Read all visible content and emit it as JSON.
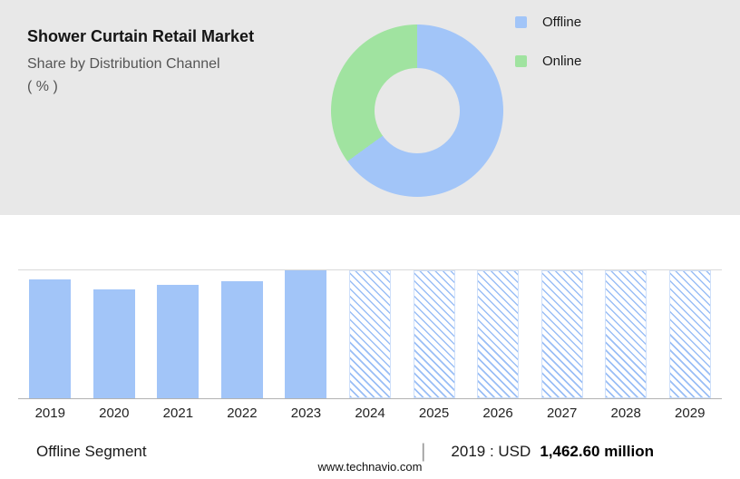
{
  "header": {
    "title": "Shower Curtain Retail Market",
    "subtitle": "Share by Distribution Channel",
    "unit": "( % )"
  },
  "legend": [
    {
      "label": "Offline",
      "color": "#a2c5f8"
    },
    {
      "label": "Online",
      "color": "#a0e3a0"
    }
  ],
  "chart_data": [
    {
      "type": "pie",
      "donut": true,
      "title": "Share by Distribution Channel ( % )",
      "labels": [
        "Offline",
        "Online"
      ],
      "values": [
        65,
        35
      ],
      "colors": [
        "#a2c5f8",
        "#a0e3a0"
      ],
      "legend_position": "right"
    },
    {
      "type": "bar",
      "title": "",
      "categories": [
        "2019",
        "2020",
        "2021",
        "2022",
        "2023",
        "2024",
        "2025",
        "2026",
        "2027",
        "2028",
        "2029"
      ],
      "values": [
        1462.6,
        1340,
        1390,
        1440,
        1570,
        null,
        null,
        null,
        null,
        null,
        null
      ],
      "forecast": [
        false,
        false,
        false,
        false,
        false,
        true,
        true,
        true,
        true,
        true,
        true
      ],
      "ylim": [
        0,
        1570
      ],
      "xlabel": "",
      "ylabel": "",
      "grid": "top-line-only",
      "bar_color": "#a2c5f8",
      "forecast_style": "hatched"
    }
  ],
  "footer": {
    "segment_label": "Offline Segment",
    "separator": "|",
    "value_prefix": "2019 : USD",
    "value_bold": "1,462.60 million",
    "website": "www.technavio.com"
  }
}
